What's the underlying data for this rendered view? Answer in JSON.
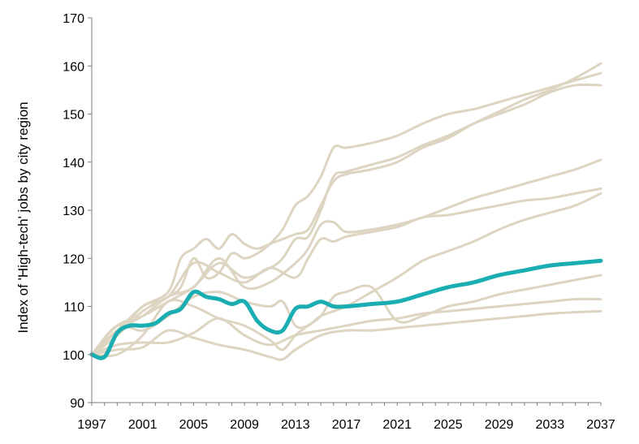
{
  "chart_data": {
    "type": "line",
    "ylabel": "Index of 'High-tech' jobs by city region",
    "xlabel": "",
    "title": "",
    "xlim": [
      1997,
      2037
    ],
    "ylim": [
      90,
      170
    ],
    "x_ticks": [
      "1997",
      "2001",
      "2005",
      "2009",
      "2013",
      "2017",
      "2021",
      "2025",
      "2029",
      "2033",
      "2037"
    ],
    "y_ticks": [
      "90",
      "100",
      "110",
      "120",
      "130",
      "140",
      "150",
      "160",
      "170"
    ],
    "grid": false,
    "legend": "none",
    "colors": {
      "highlight": "#1aadb1",
      "background_series": "#ddd5c2",
      "axis": "#7f7f7f"
    },
    "highlight": {
      "x": [
        1997,
        1998,
        1999,
        2000,
        2001,
        2002,
        2003,
        2004,
        2005,
        2006,
        2007,
        2008,
        2009,
        2010,
        2011,
        2012,
        2013,
        2014,
        2015,
        2016,
        2017,
        2019,
        2021,
        2023,
        2025,
        2027,
        2029,
        2031,
        2033,
        2035,
        2037
      ],
      "values": [
        100,
        99.5,
        104.5,
        106,
        106,
        106.5,
        108.5,
        109.5,
        113,
        112,
        111.5,
        110.5,
        111,
        107,
        105,
        105,
        109.5,
        110,
        111,
        110,
        110,
        110.5,
        111,
        112.5,
        114,
        115,
        116.5,
        117.5,
        118.5,
        119,
        119.5
      ]
    },
    "series": [
      {
        "x": [
          1997,
          1999,
          2001,
          2003,
          2004,
          2005,
          2006,
          2007,
          2008,
          2009,
          2010,
          2011,
          2012,
          2013,
          2014,
          2015,
          2016,
          2017,
          2019,
          2021,
          2023,
          2025,
          2027,
          2029,
          2031,
          2033,
          2035,
          2037
        ],
        "values": [
          100,
          104,
          109,
          112,
          114,
          120,
          116,
          117,
          121,
          120,
          121,
          123,
          126,
          131,
          133,
          137,
          143,
          143,
          144,
          145.5,
          148,
          150,
          151,
          152.5,
          154,
          155.5,
          157,
          158.5
        ]
      },
      {
        "x": [
          1997,
          1999,
          2001,
          2003,
          2004,
          2005,
          2006,
          2007,
          2008,
          2009,
          2010,
          2011,
          2012,
          2013,
          2014,
          2015,
          2016,
          2017,
          2019,
          2021,
          2023,
          2025,
          2027,
          2029,
          2031,
          2033,
          2035,
          2037
        ],
        "values": [
          100,
          105,
          110,
          113,
          120,
          122,
          124,
          122,
          125,
          123,
          122,
          123,
          124,
          125,
          126,
          131,
          136,
          137.5,
          138.5,
          140,
          143,
          145,
          148,
          150.5,
          153,
          155,
          157.5,
          160.5
        ]
      },
      {
        "x": [
          1997,
          1999,
          2001,
          2003,
          2005,
          2007,
          2009,
          2011,
          2012,
          2013,
          2014,
          2015,
          2016,
          2017,
          2019,
          2021,
          2023,
          2025,
          2027,
          2029,
          2031,
          2033,
          2035,
          2037
        ],
        "values": [
          100,
          106,
          108,
          111,
          114,
          119,
          116,
          118,
          120,
          124,
          124.5,
          130,
          137,
          138,
          139.5,
          141,
          143.5,
          145.5,
          148,
          150,
          152,
          154.5,
          156,
          156
        ]
      },
      {
        "x": [
          1997,
          1999,
          2001,
          2003,
          2005,
          2007,
          2009,
          2011,
          2013,
          2014,
          2015,
          2016,
          2017,
          2019,
          2021,
          2023,
          2025,
          2027,
          2029,
          2031,
          2033,
          2035,
          2037
        ],
        "values": [
          100,
          105,
          108,
          112,
          114,
          120,
          114,
          115,
          119,
          122,
          127,
          127.5,
          125.5,
          126,
          127,
          128.5,
          130.5,
          132.5,
          134,
          135.5,
          137,
          138.5,
          140.5
        ]
      },
      {
        "x": [
          1997,
          1999,
          2001,
          2003,
          2005,
          2007,
          2009,
          2011,
          2013,
          2014,
          2015,
          2016,
          2017,
          2019,
          2021,
          2023,
          2025,
          2027,
          2029,
          2031,
          2033,
          2035,
          2037
        ],
        "values": [
          100,
          104,
          110,
          112,
          119,
          117,
          115,
          118,
          116,
          120,
          124,
          123.5,
          124.5,
          125.5,
          126.5,
          128.5,
          129,
          130,
          131,
          132,
          132.5,
          133.5,
          134.5
        ]
      },
      {
        "x": [
          1997,
          1999,
          2001,
          2003,
          2005,
          2007,
          2009,
          2011,
          2012,
          2013,
          2014,
          2015,
          2017,
          2019,
          2021,
          2023,
          2025,
          2027,
          2029,
          2031,
          2033,
          2035,
          2037
        ],
        "values": [
          100,
          106,
          105,
          108,
          112,
          113,
          111,
          110,
          111,
          106,
          106,
          108,
          110,
          113,
          116,
          119.5,
          121.5,
          123.5,
          126,
          128,
          129.5,
          131,
          133.5
        ]
      },
      {
        "x": [
          1997,
          1999,
          2001,
          2003,
          2005,
          2007,
          2009,
          2011,
          2012,
          2013,
          2014,
          2015,
          2016,
          2017,
          2019,
          2021,
          2023,
          2025,
          2027,
          2029,
          2031,
          2033,
          2035,
          2037
        ],
        "values": [
          100,
          100,
          104,
          111,
          110,
          107.5,
          106,
          103,
          101,
          104,
          106,
          108,
          112,
          113,
          114,
          107,
          108,
          110,
          111,
          112.5,
          113.5,
          114.5,
          115.5,
          116.5
        ]
      },
      {
        "x": [
          1997,
          1999,
          2001,
          2003,
          2005,
          2007,
          2009,
          2011,
          2013,
          2015,
          2017,
          2019,
          2021,
          2023,
          2025,
          2027,
          2029,
          2031,
          2033,
          2035,
          2037
        ],
        "values": [
          100,
          102,
          102.5,
          102.5,
          104.5,
          107.5,
          104,
          102,
          104,
          105,
          106,
          107,
          107.5,
          108.5,
          109,
          109.5,
          110,
          110.5,
          111,
          111.5,
          111.5
        ]
      },
      {
        "x": [
          1997,
          1999,
          2001,
          2003,
          2005,
          2007,
          2009,
          2011,
          2012,
          2013,
          2015,
          2017,
          2019,
          2021,
          2023,
          2025,
          2027,
          2029,
          2031,
          2033,
          2035,
          2037
        ],
        "values": [
          100,
          101,
          101.5,
          105,
          103.5,
          102,
          101,
          99.5,
          99,
          101,
          104,
          105,
          105,
          105.5,
          106,
          106.5,
          107,
          107.5,
          108,
          108.5,
          108.8,
          109
        ]
      }
    ]
  }
}
